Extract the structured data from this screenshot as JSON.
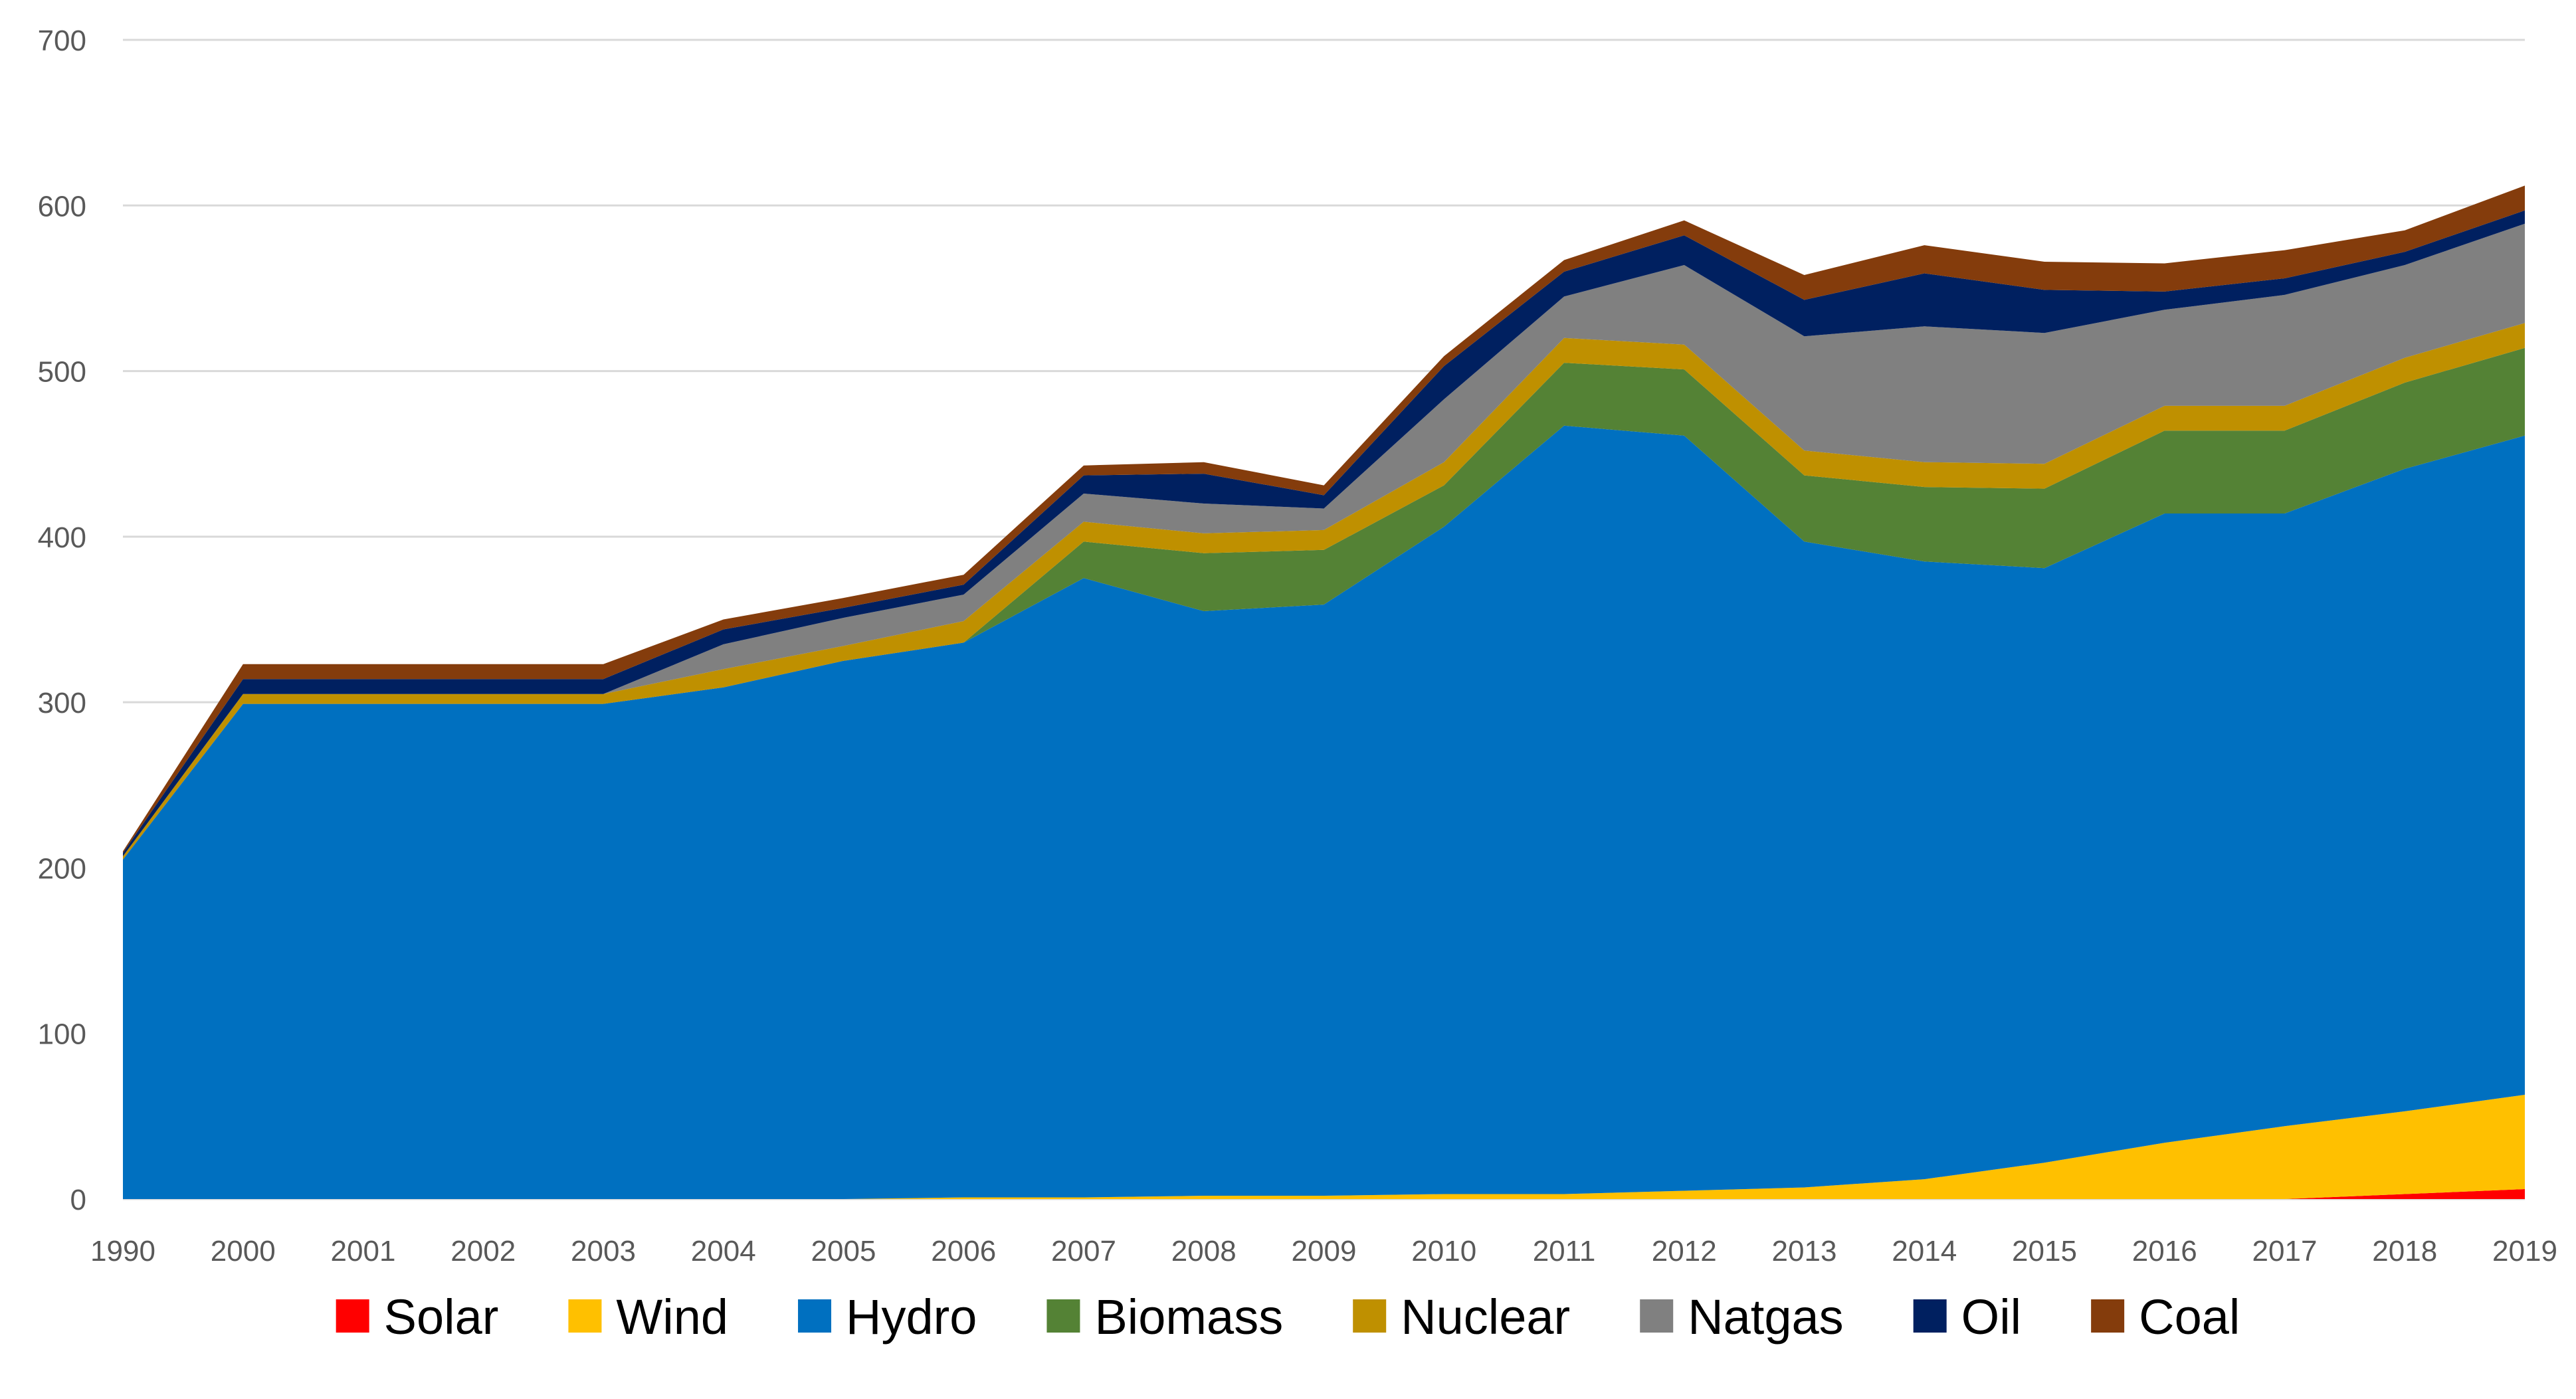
{
  "chart_data": {
    "type": "area",
    "stacked": true,
    "title": "",
    "xlabel": "",
    "ylabel": "",
    "ylim": [
      0,
      700
    ],
    "yticks": [
      0,
      100,
      200,
      300,
      400,
      500,
      600,
      700
    ],
    "grid": "horizontal",
    "legend_position": "bottom",
    "categories": [
      "1990",
      "2000",
      "2001",
      "2002",
      "2003",
      "2004",
      "2005",
      "2006",
      "2007",
      "2008",
      "2009",
      "2010",
      "2011",
      "2012",
      "2013",
      "2014",
      "2015",
      "2016",
      "2017",
      "2018",
      "2019"
    ],
    "series": [
      {
        "name": "Solar",
        "color": "#ff0000",
        "values": [
          0,
          0,
          0,
          0,
          0,
          0,
          0,
          0,
          0,
          0,
          0,
          0,
          0,
          0,
          0,
          0,
          0,
          0,
          0,
          3,
          6
        ]
      },
      {
        "name": "Wind",
        "color": "#ffc000",
        "values": [
          0,
          0,
          0,
          0,
          0,
          0,
          0,
          1,
          1,
          2,
          2,
          3,
          3,
          5,
          7,
          12,
          22,
          34,
          44,
          50,
          57
        ]
      },
      {
        "name": "Hydro",
        "color": "#0070c0",
        "values": [
          205,
          299,
          299,
          299,
          299,
          309,
          325,
          335,
          374,
          353,
          357,
          403,
          464,
          456,
          390,
          373,
          359,
          380,
          370,
          388,
          398
        ]
      },
      {
        "name": "Biomass",
        "color": "#548235",
        "values": [
          0,
          0,
          0,
          0,
          0,
          0,
          0,
          0,
          22,
          35,
          33,
          25,
          38,
          40,
          40,
          45,
          48,
          50,
          50,
          52,
          53
        ]
      },
      {
        "name": "Nuclear",
        "color": "#bf9000",
        "values": [
          2,
          6,
          6,
          6,
          6,
          11,
          9,
          13,
          12,
          12,
          12,
          14,
          15,
          15,
          15,
          15,
          15,
          15,
          15,
          15,
          15
        ]
      },
      {
        "name": "Natgas",
        "color": "#808080",
        "values": [
          0,
          0,
          0,
          0,
          0,
          15,
          17,
          16,
          17,
          18,
          13,
          38,
          25,
          48,
          69,
          82,
          79,
          58,
          67,
          56,
          60
        ]
      },
      {
        "name": "Oil",
        "color": "#002060",
        "values": [
          2,
          9,
          9,
          9,
          9,
          9,
          6,
          6,
          11,
          18,
          8,
          20,
          15,
          18,
          22,
          32,
          26,
          11,
          10,
          8,
          8
        ]
      },
      {
        "name": "Coal",
        "color": "#843c0c",
        "values": [
          1,
          9,
          9,
          9,
          9,
          6,
          6,
          6,
          6,
          7,
          6,
          6,
          7,
          9,
          15,
          17,
          17,
          17,
          17,
          13,
          15
        ]
      }
    ]
  }
}
